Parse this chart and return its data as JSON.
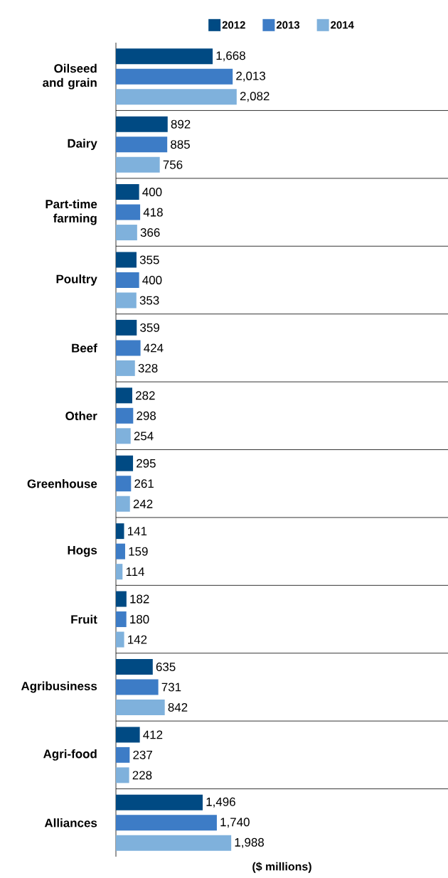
{
  "chart_data": {
    "type": "bar",
    "orientation": "horizontal",
    "xlabel": "($ millions)",
    "categories": [
      "Oilseed and grain",
      "Dairy",
      "Part-time farming",
      "Poultry",
      "Beef",
      "Other",
      "Greenhouse",
      "Hogs",
      "Fruit",
      "Agribusiness",
      "Agri-food",
      "Alliances"
    ],
    "series": [
      {
        "name": "2012",
        "color": "#004a83",
        "values": [
          1668,
          892,
          400,
          355,
          359,
          282,
          295,
          141,
          182,
          635,
          412,
          1496
        ],
        "value_labels": [
          "1,668",
          "892",
          "400",
          "355",
          "359",
          "282",
          "295",
          "141",
          "182",
          "635",
          "412",
          "1,496"
        ]
      },
      {
        "name": "2013",
        "color": "#3d7cc6",
        "values": [
          2013,
          885,
          418,
          400,
          424,
          298,
          261,
          159,
          180,
          731,
          237,
          1740
        ],
        "value_labels": [
          "2,013",
          "885",
          "418",
          "400",
          "424",
          "298",
          "261",
          "159",
          "180",
          "731",
          "237",
          "1,740"
        ]
      },
      {
        "name": "2014",
        "color": "#7fb1dc",
        "values": [
          2082,
          756,
          366,
          353,
          328,
          254,
          242,
          114,
          142,
          842,
          228,
          1988
        ],
        "value_labels": [
          "2,082",
          "756",
          "366",
          "353",
          "328",
          "254",
          "242",
          "114",
          "142",
          "842",
          "228",
          "1,988"
        ]
      }
    ],
    "grid": "y",
    "legend": "top"
  }
}
